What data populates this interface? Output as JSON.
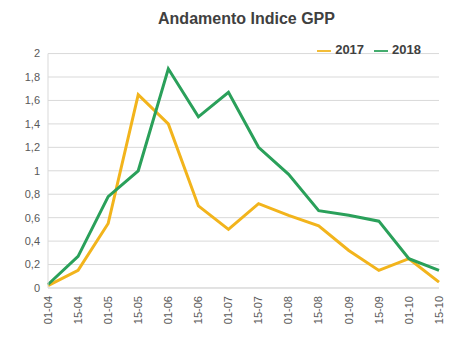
{
  "chart_data": {
    "type": "line",
    "title": "Andamento Indice GPP",
    "categories": [
      "01-04",
      "15-04",
      "01-05",
      "15-05",
      "01-06",
      "15-06",
      "01-07",
      "15-07",
      "01-08",
      "15-08",
      "01-09",
      "15-09",
      "01-10",
      "15-10"
    ],
    "series": [
      {
        "name": "2017",
        "color": "#f2b41c",
        "values": [
          0.02,
          0.15,
          0.55,
          1.65,
          1.4,
          0.7,
          0.5,
          0.72,
          0.62,
          0.53,
          0.32,
          0.15,
          0.25,
          0.05
        ]
      },
      {
        "name": "2018",
        "color": "#2aa05a",
        "values": [
          0.03,
          0.27,
          0.78,
          1.0,
          1.87,
          1.46,
          1.67,
          1.2,
          0.97,
          0.66,
          0.62,
          0.57,
          0.25,
          0.15
        ]
      }
    ],
    "ylim": [
      0,
      2
    ],
    "yticks": [
      0,
      {
        "value": 0.2,
        "label": "0,2"
      },
      {
        "value": 0.4,
        "label": "0,4"
      },
      {
        "value": 0.6,
        "label": "0,6"
      },
      {
        "value": 0.8,
        "label": "0,8"
      },
      1,
      {
        "value": 1.2,
        "label": "1,2"
      },
      {
        "value": 1.4,
        "label": "1,4"
      },
      {
        "value": 1.6,
        "label": "1,6"
      },
      {
        "value": 1.8,
        "label": "1,8"
      },
      2
    ],
    "grid": true,
    "legend": "top right"
  }
}
